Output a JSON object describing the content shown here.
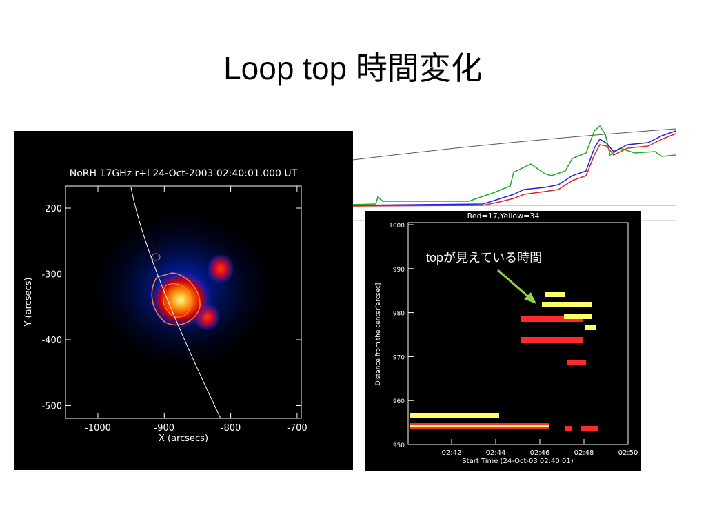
{
  "title": "Loop top 時間変化",
  "left_figure": {
    "header": "NoRH 17GHz r+l 24-Oct-2003 02:40:01.000 UT",
    "yticks": [
      -200,
      -300,
      -400,
      -500
    ],
    "xticks": [
      -1000,
      -900,
      -800,
      -700
    ],
    "xlabel": "X (arcsecs)",
    "ylabel": "Y (arcsecs)"
  },
  "right_figure": {
    "header": "Red=17,Yellow=34",
    "yticks": [
      950,
      960,
      970,
      980,
      990,
      1000
    ],
    "xticks": [
      "02:42",
      "02:44",
      "02:46",
      "02:48",
      "02:50"
    ],
    "xlabel": "Start Time (24-Oct-03 02:40:01)",
    "ylabel": "Distance from the center[arcsec]",
    "annotation": "topが見えている時間"
  }
}
